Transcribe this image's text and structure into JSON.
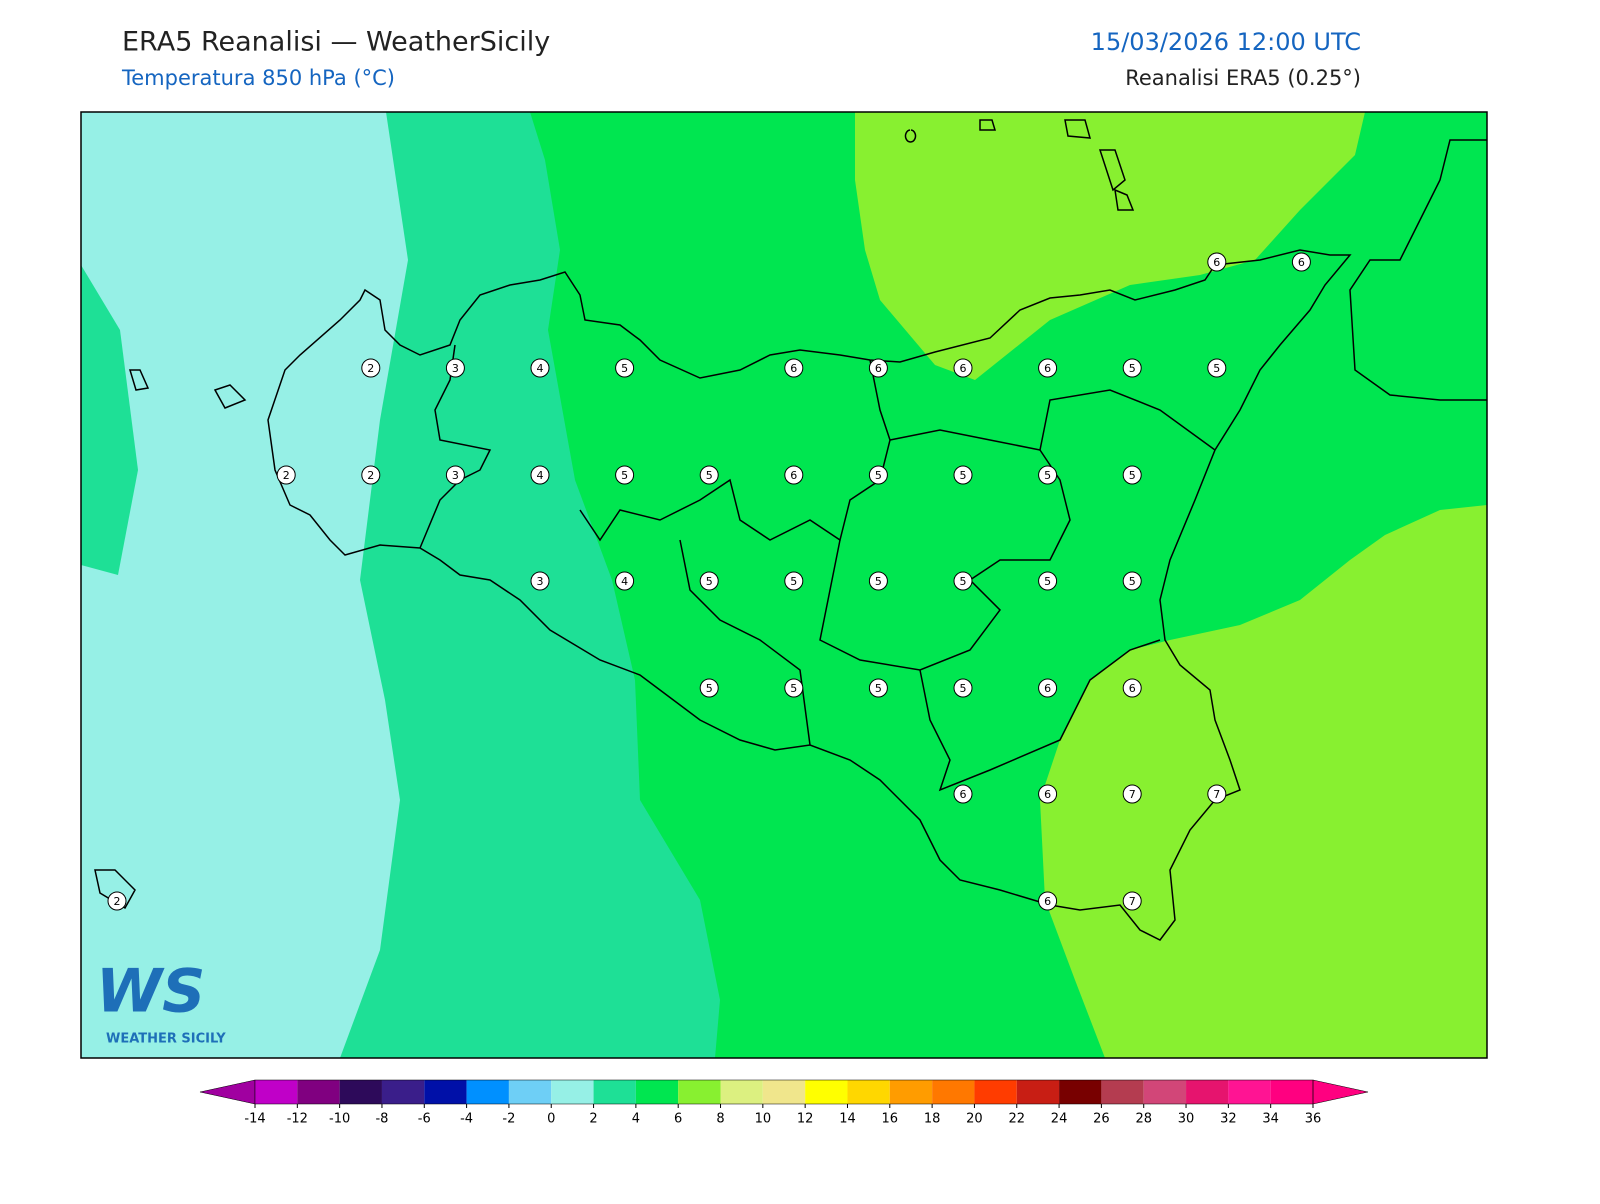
{
  "header": {
    "title": "ERA5 Reanalisi — WeatherSicily",
    "subtitle": "Temperatura 850 hPa (°C)",
    "datetime": "15/03/2026 12:00 UTC",
    "source": "Reanalisi ERA5 (0.25°)"
  },
  "stations": [
    6,
    6,
    2,
    3,
    4,
    5,
    6,
    6,
    6,
    6,
    5,
    5,
    2,
    2,
    3,
    4,
    5,
    5,
    6,
    5,
    5,
    5,
    5,
    3,
    4,
    5,
    5,
    5,
    5,
    5,
    5,
    5,
    5,
    5,
    5,
    6,
    6,
    6,
    6,
    7,
    7,
    2,
    6,
    7
  ],
  "colorbar": {
    "ticks": [
      -14,
      -12,
      -10,
      -8,
      -6,
      -4,
      -2,
      0,
      2,
      4,
      6,
      8,
      10,
      12,
      14,
      16,
      18,
      20,
      22,
      24,
      26,
      28,
      30,
      32,
      34,
      36
    ],
    "colors": [
      "#a000a0",
      "#c000c8",
      "#800080",
      "#2d0a5a",
      "#3a1e8a",
      "#0010a8",
      "#0090ff",
      "#6ecff6",
      "#96f0e6",
      "#1ee096",
      "#00e650",
      "#88f030",
      "#dcf080",
      "#f0e68c",
      "#ffff00",
      "#ffd700",
      "#ff9c00",
      "#ff7800",
      "#ff3c00",
      "#c81e14",
      "#780000",
      "#b43c50",
      "#d24678",
      "#e6146e",
      "#ff1493",
      "#ff0080",
      "#ff0080"
    ]
  },
  "logo": {
    "mark": "WS",
    "text": "WEATHER SICILY"
  }
}
